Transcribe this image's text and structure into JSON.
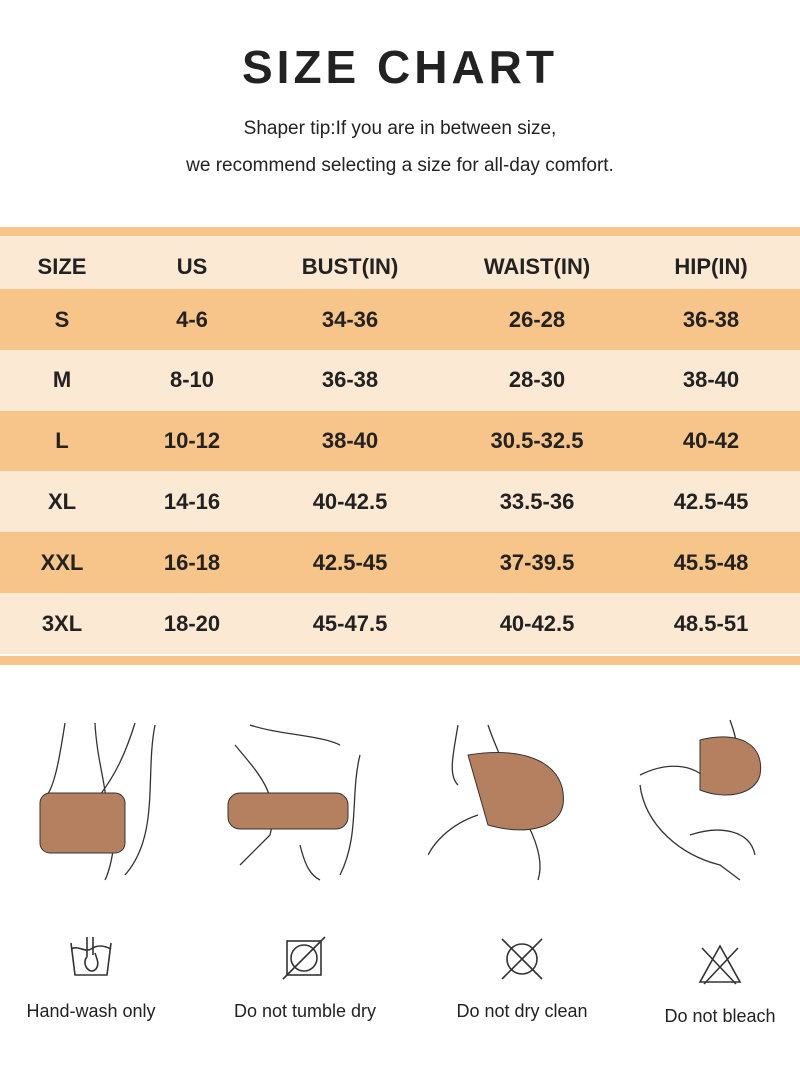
{
  "title": "SIZE CHART",
  "tip_line1": "Shaper tip:If you are in between size,",
  "tip_line2": "we recommend selecting a size for all-day comfort.",
  "colors": {
    "dark_row": "#F7C48A",
    "light_row": "#FCE9D3",
    "shorts": "#B5805F"
  },
  "table": {
    "headers": [
      "SIZE",
      "US",
      "BUST(IN)",
      "WAIST(IN)",
      "HIP(IN)"
    ],
    "rows": [
      [
        "S",
        "4-6",
        "34-36",
        "26-28",
        "36-38"
      ],
      [
        "M",
        "8-10",
        "36-38",
        "28-30",
        "38-40"
      ],
      [
        "L",
        "10-12",
        "38-40",
        "30.5-32.5",
        "40-42"
      ],
      [
        "XL",
        "14-16",
        "40-42.5",
        "33.5-36",
        "42.5-45"
      ],
      [
        "XXL",
        "16-18",
        "42.5-45",
        "37-39.5",
        "45.5-48"
      ],
      [
        "3XL",
        "18-20",
        "45-47.5",
        "40-42.5",
        "48.5-51"
      ]
    ]
  },
  "care": [
    {
      "icon": "hand-wash-icon",
      "label": "Hand-wash only"
    },
    {
      "icon": "no-tumble-dry-icon",
      "label": "Do not tumble dry"
    },
    {
      "icon": "no-dry-clean-icon",
      "label": "Do not dry clean"
    },
    {
      "icon": "no-bleach-icon",
      "label": "Do not bleach"
    }
  ]
}
